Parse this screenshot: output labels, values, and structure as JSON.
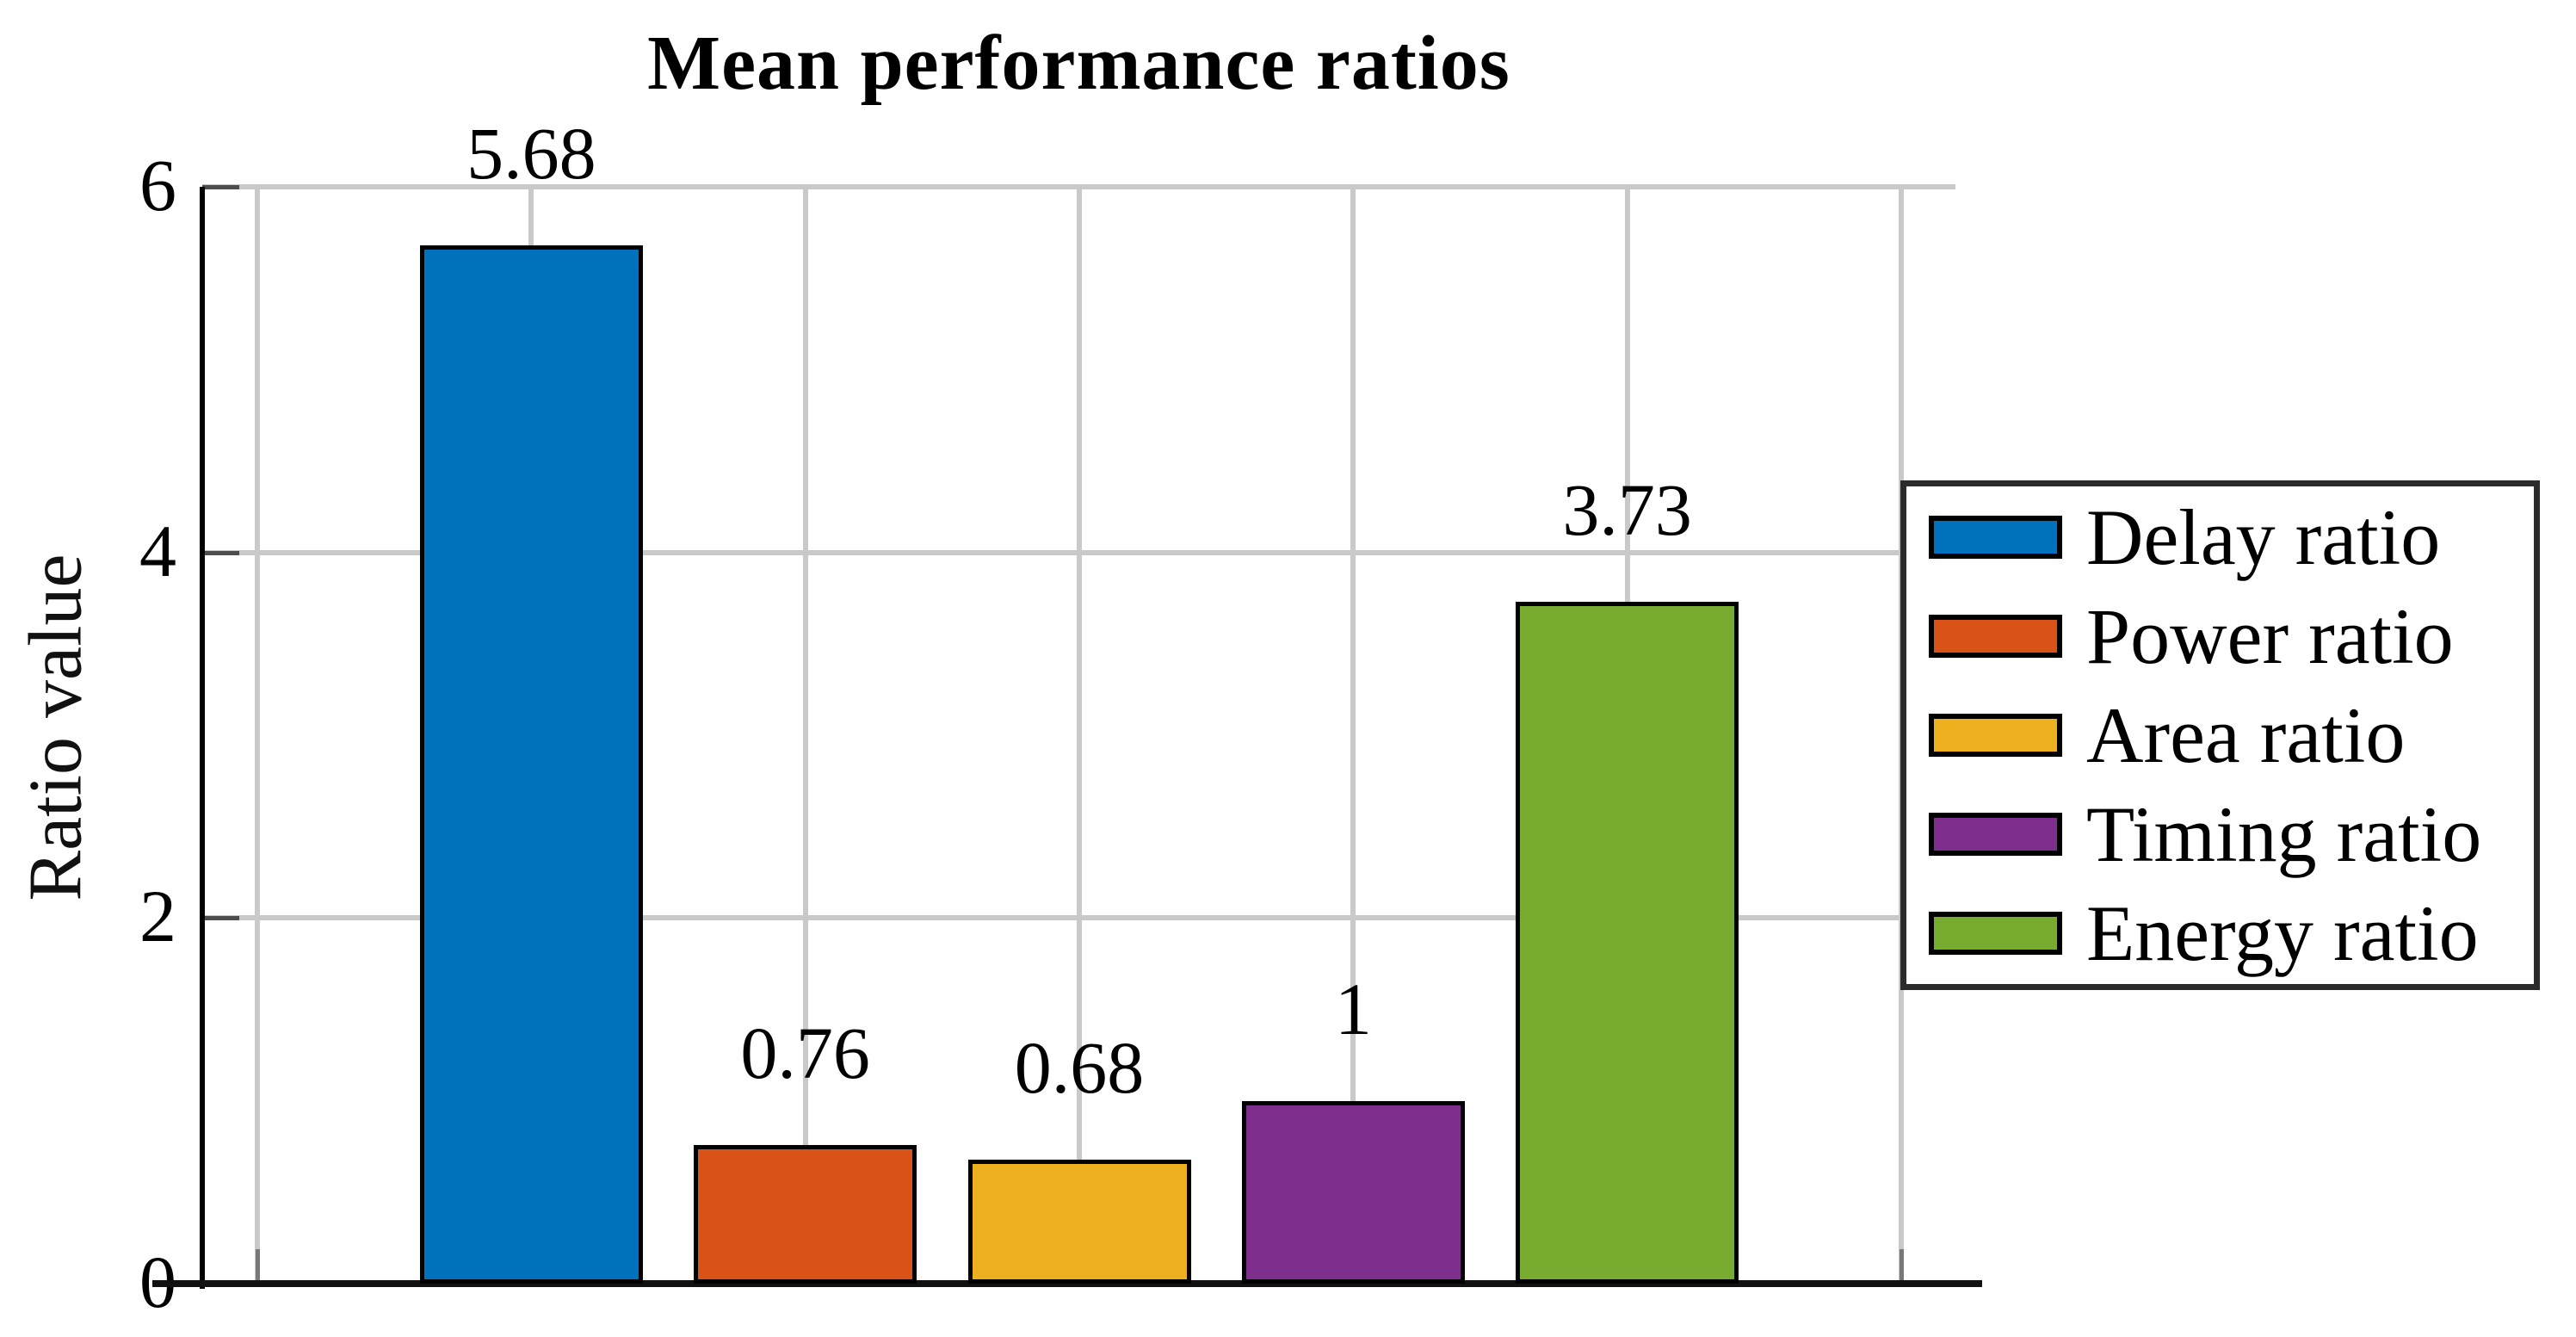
{
  "chart_data": {
    "type": "bar",
    "title": "Mean performance ratios",
    "xlabel": "",
    "ylabel": "Ratio value",
    "ylim": [
      0,
      6
    ],
    "yticks": [
      0,
      2,
      4,
      6
    ],
    "ytick_labels": [
      "0",
      "2",
      "4",
      "6"
    ],
    "grid": true,
    "legend_position": "right",
    "categories": [
      "Delay ratio",
      "Power ratio",
      "Area ratio",
      "Timing ratio",
      "Energy ratio"
    ],
    "values": [
      5.68,
      0.76,
      0.68,
      1,
      3.73
    ],
    "value_labels": [
      "5.68",
      "0.76",
      "0.68",
      "1",
      "3.73"
    ],
    "bar_colors": [
      "#0072BD",
      "#D95319",
      "#EDB120",
      "#7E2F8E",
      "#77AC30"
    ],
    "legend": [
      {
        "label": "Delay ratio",
        "color": "#0072BD"
      },
      {
        "label": "Power ratio",
        "color": "#D95319"
      },
      {
        "label": "Area ratio",
        "color": "#EDB120"
      },
      {
        "label": "Timing ratio",
        "color": "#7E2F8E"
      },
      {
        "label": "Energy ratio",
        "color": "#77AC30"
      }
    ]
  }
}
